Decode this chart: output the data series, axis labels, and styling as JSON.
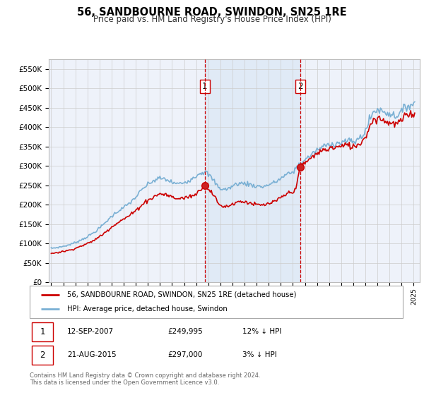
{
  "title": "56, SANDBOURNE ROAD, SWINDON, SN25 1RE",
  "subtitle": "Price paid vs. HM Land Registry's House Price Index (HPI)",
  "red_label": "56, SANDBOURNE ROAD, SWINDON, SN25 1RE (detached house)",
  "blue_label": "HPI: Average price, detached house, Swindon",
  "sale1_date": "12-SEP-2007",
  "sale1_price": 249995,
  "sale1_pct": "12% ↓ HPI",
  "sale2_date": "21-AUG-2015",
  "sale2_price": 297000,
  "sale2_pct": "3% ↓ HPI",
  "footnote": "Contains HM Land Registry data © Crown copyright and database right 2024.\nThis data is licensed under the Open Government Licence v3.0.",
  "ylim": [
    0,
    575000
  ],
  "yticks": [
    0,
    50000,
    100000,
    150000,
    200000,
    250000,
    300000,
    350000,
    400000,
    450000,
    500000,
    550000
  ],
  "background_color": "#eef2fa",
  "plot_bg_color": "#eef2fa",
  "shade_color": "#dde8f5",
  "red_color": "#cc0000",
  "blue_color": "#7ab0d4",
  "grid_color": "#cccccc",
  "sale_marker_color": "#cc0000",
  "sale1_x": 2007.7,
  "sale2_x": 2015.6,
  "xlim_start": 1994.8,
  "xlim_end": 2025.5
}
